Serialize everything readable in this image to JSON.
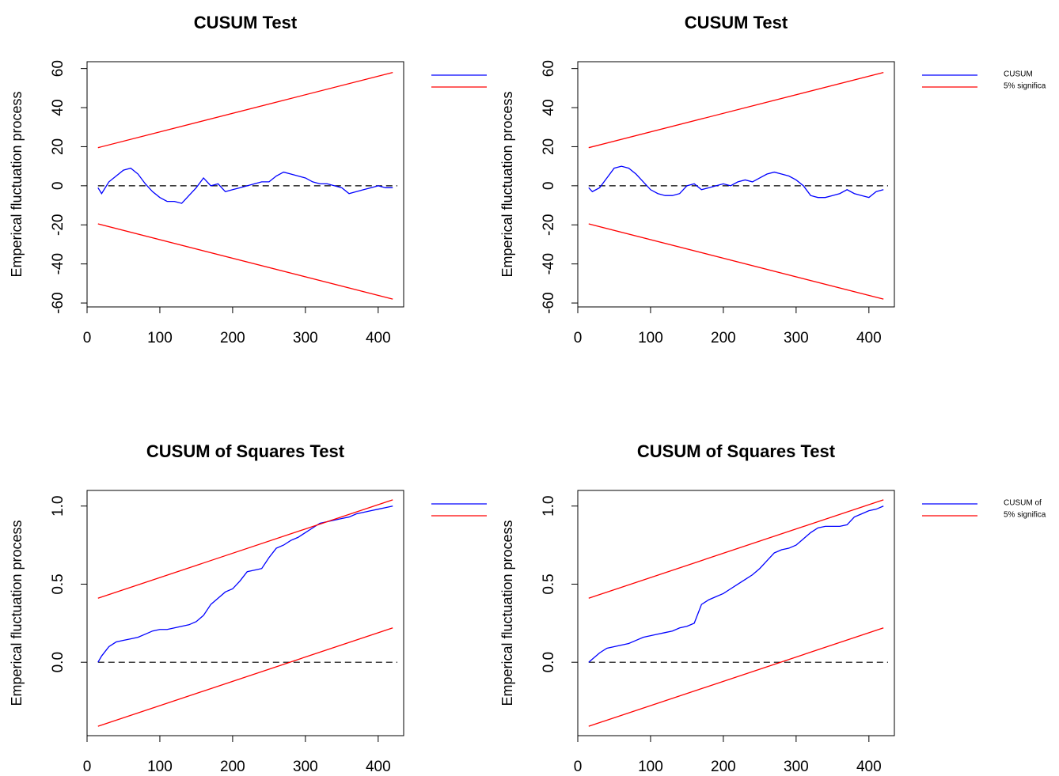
{
  "chart_data": [
    {
      "type": "line",
      "title": "CUSUM Test",
      "y_label": "Emperical fluctuation process",
      "xlim": [
        0,
        435
      ],
      "ylim": [
        -62,
        63.5
      ],
      "xticks": [
        0,
        100,
        200,
        300,
        400
      ],
      "yticks": [
        -60,
        -40,
        -20,
        0,
        20,
        40,
        60
      ],
      "hline": 0,
      "legend": true,
      "series": [
        {
          "color": "#0000ff",
          "x": [
            15,
            20,
            30,
            40,
            50,
            60,
            70,
            80,
            90,
            100,
            110,
            120,
            130,
            140,
            150,
            160,
            170,
            180,
            190,
            200,
            210,
            220,
            230,
            240,
            250,
            260,
            270,
            280,
            290,
            300,
            310,
            320,
            330,
            340,
            350,
            360,
            370,
            380,
            390,
            400,
            410,
            420
          ],
          "values": [
            -1,
            -4,
            2,
            5,
            8,
            9,
            6,
            1,
            -3,
            -6,
            -8,
            -8,
            -9,
            -5,
            -1,
            4,
            0,
            1,
            -3,
            -2,
            -1,
            0,
            1,
            2,
            2,
            5,
            7,
            6,
            5,
            4,
            2,
            1,
            1,
            0,
            -1,
            -4,
            -3,
            -2,
            -1,
            0,
            -1,
            -1
          ]
        },
        {
          "color": "#ff0000",
          "x": [
            15,
            420
          ],
          "values": [
            19.5,
            58
          ]
        },
        {
          "color": "#ff0000",
          "x": [
            15,
            420
          ],
          "values": [
            -19.5,
            -58
          ],
          "in_legend": false
        }
      ]
    },
    {
      "type": "line",
      "title": "CUSUM Test",
      "y_label": "Emperical fluctuation process",
      "xlim": [
        0,
        435
      ],
      "ylim": [
        -62,
        63.5
      ],
      "xticks": [
        0,
        100,
        200,
        300,
        400
      ],
      "yticks": [
        -60,
        -40,
        -20,
        0,
        20,
        40,
        60
      ],
      "hline": 0,
      "legend": true,
      "series": [
        {
          "name": "CUSUM",
          "color": "#0000ff",
          "x": [
            15,
            20,
            30,
            40,
            50,
            60,
            70,
            80,
            90,
            100,
            110,
            120,
            130,
            140,
            150,
            160,
            170,
            180,
            190,
            200,
            210,
            220,
            230,
            240,
            250,
            260,
            270,
            280,
            290,
            300,
            310,
            320,
            330,
            340,
            350,
            360,
            370,
            380,
            390,
            400,
            410,
            420
          ],
          "values": [
            -1,
            -3,
            -1,
            4,
            9,
            10,
            9,
            6,
            2,
            -2,
            -4,
            -5,
            -5,
            -4,
            0,
            1,
            -2,
            -1,
            0,
            1,
            0,
            2,
            3,
            2,
            4,
            6,
            7,
            6,
            5,
            3,
            0,
            -5,
            -6,
            -6,
            -5,
            -4,
            -2,
            -4,
            -5,
            -6,
            -3,
            -2
          ]
        },
        {
          "name": "5% significa",
          "color": "#ff0000",
          "x": [
            15,
            420
          ],
          "values": [
            19.5,
            58
          ]
        },
        {
          "color": "#ff0000",
          "x": [
            15,
            420
          ],
          "values": [
            -19.5,
            -58
          ],
          "in_legend": false
        }
      ]
    },
    {
      "type": "line",
      "title": "CUSUM of Squares Test",
      "y_label": "Emperical fluctuation process",
      "xlim": [
        0,
        435
      ],
      "ylim": [
        -0.47,
        1.1
      ],
      "xticks": [
        0,
        100,
        200,
        300,
        400
      ],
      "yticks": [
        {
          "value": 0,
          "label": "0.0"
        },
        0.5,
        {
          "value": 1,
          "label": "1.0"
        }
      ],
      "hline": 0,
      "legend": true,
      "series": [
        {
          "color": "#0000ff",
          "x": [
            15,
            20,
            30,
            40,
            50,
            60,
            70,
            80,
            90,
            100,
            110,
            120,
            130,
            140,
            150,
            160,
            170,
            180,
            190,
            200,
            210,
            220,
            230,
            240,
            250,
            260,
            270,
            280,
            290,
            300,
            310,
            320,
            330,
            340,
            350,
            360,
            370,
            380,
            390,
            400,
            410,
            420
          ],
          "values": [
            0,
            0.04,
            0.1,
            0.13,
            0.14,
            0.15,
            0.16,
            0.18,
            0.2,
            0.21,
            0.21,
            0.22,
            0.23,
            0.24,
            0.26,
            0.3,
            0.37,
            0.41,
            0.45,
            0.47,
            0.52,
            0.58,
            0.59,
            0.6,
            0.67,
            0.73,
            0.75,
            0.78,
            0.8,
            0.83,
            0.86,
            0.89,
            0.9,
            0.91,
            0.92,
            0.93,
            0.95,
            0.96,
            0.97,
            0.98,
            0.99,
            1.0
          ]
        },
        {
          "color": "#ff0000",
          "x": [
            15,
            420
          ],
          "values": [
            0.41,
            1.04
          ]
        },
        {
          "color": "#ff0000",
          "x": [
            15,
            420
          ],
          "values": [
            -0.41,
            0.22
          ],
          "in_legend": false
        }
      ]
    },
    {
      "type": "line",
      "title": "CUSUM of Squares Test",
      "y_label": "Emperical fluctuation process",
      "xlim": [
        0,
        435
      ],
      "ylim": [
        -0.47,
        1.1
      ],
      "xticks": [
        0,
        100,
        200,
        300,
        400
      ],
      "yticks": [
        {
          "value": 0,
          "label": "0.0"
        },
        0.5,
        {
          "value": 1,
          "label": "1.0"
        }
      ],
      "hline": 0,
      "legend": true,
      "series": [
        {
          "name": "CUSUM of",
          "color": "#0000ff",
          "x": [
            15,
            20,
            30,
            40,
            50,
            60,
            70,
            80,
            90,
            100,
            110,
            120,
            130,
            140,
            150,
            160,
            170,
            180,
            190,
            200,
            210,
            220,
            230,
            240,
            250,
            260,
            270,
            280,
            290,
            300,
            310,
            320,
            330,
            340,
            350,
            360,
            370,
            380,
            390,
            400,
            410,
            420
          ],
          "values": [
            0,
            0.02,
            0.06,
            0.09,
            0.1,
            0.11,
            0.12,
            0.14,
            0.16,
            0.17,
            0.18,
            0.19,
            0.2,
            0.22,
            0.23,
            0.25,
            0.37,
            0.4,
            0.42,
            0.44,
            0.47,
            0.5,
            0.53,
            0.56,
            0.6,
            0.65,
            0.7,
            0.72,
            0.73,
            0.75,
            0.79,
            0.83,
            0.86,
            0.87,
            0.87,
            0.87,
            0.88,
            0.93,
            0.95,
            0.97,
            0.98,
            1.0
          ]
        },
        {
          "name": "5% significa",
          "color": "#ff0000",
          "x": [
            15,
            420
          ],
          "values": [
            0.41,
            1.04
          ]
        },
        {
          "color": "#ff0000",
          "x": [
            15,
            420
          ],
          "values": [
            -0.41,
            0.22
          ],
          "in_legend": false
        }
      ]
    }
  ]
}
